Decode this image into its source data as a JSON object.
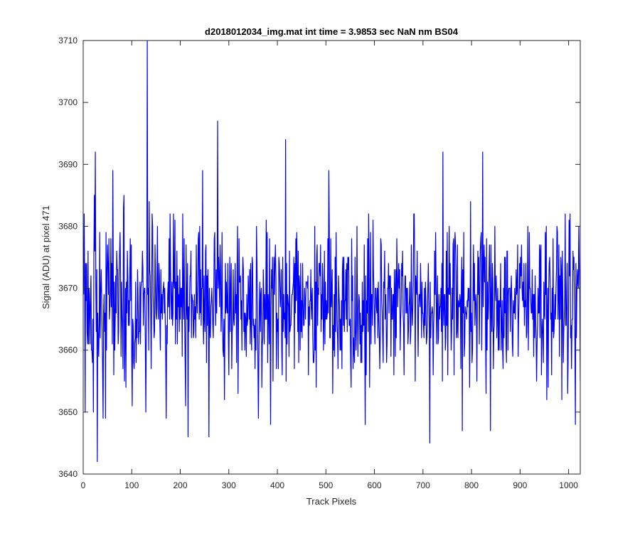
{
  "chart_data": {
    "type": "line",
    "title": "d2018012034_img.mat int time = 3.9853 sec  NaN nm BS04",
    "xlabel": "Track Pixels",
    "ylabel": "Signal (ADU) at pixel 471",
    "xlim": [
      0,
      1024
    ],
    "ylim": [
      3640,
      3710
    ],
    "xticks": [
      0,
      100,
      200,
      300,
      400,
      500,
      600,
      700,
      800,
      900,
      1000
    ],
    "yticks": [
      3640,
      3650,
      3660,
      3670,
      3680,
      3690,
      3700,
      3710
    ],
    "grid": false,
    "line_color": "#0000ff",
    "noise": {
      "points": 1024,
      "mean": 3668,
      "amplitude": 11,
      "seed": 2018
    },
    "notable_points": [
      {
        "x": 1,
        "y": 3682
      },
      {
        "x": 3,
        "y": 3650
      },
      {
        "x": 17,
        "y": 3660
      },
      {
        "x": 20,
        "y": 3650
      },
      {
        "x": 22,
        "y": 3685
      },
      {
        "x": 24,
        "y": 3692
      },
      {
        "x": 28,
        "y": 3642
      },
      {
        "x": 40,
        "y": 3649
      },
      {
        "x": 45,
        "y": 3649
      },
      {
        "x": 60,
        "y": 3689
      },
      {
        "x": 100,
        "y": 3651
      },
      {
        "x": 128,
        "y": 3650
      },
      {
        "x": 131,
        "y": 3710
      },
      {
        "x": 135,
        "y": 3684
      },
      {
        "x": 170,
        "y": 3649
      },
      {
        "x": 210,
        "y": 3651
      },
      {
        "x": 215,
        "y": 3646
      },
      {
        "x": 245,
        "y": 3689
      },
      {
        "x": 258,
        "y": 3646
      },
      {
        "x": 276,
        "y": 3697
      },
      {
        "x": 290,
        "y": 3652
      },
      {
        "x": 360,
        "y": 3649
      },
      {
        "x": 385,
        "y": 3648
      },
      {
        "x": 416,
        "y": 3694
      },
      {
        "x": 505,
        "y": 3689
      },
      {
        "x": 580,
        "y": 3648
      },
      {
        "x": 713,
        "y": 3645
      },
      {
        "x": 740,
        "y": 3692
      },
      {
        "x": 780,
        "y": 3647
      },
      {
        "x": 822,
        "y": 3692
      },
      {
        "x": 838,
        "y": 3647
      },
      {
        "x": 1013,
        "y": 3648
      },
      {
        "x": 1020,
        "y": 3680
      },
      {
        "x": 1023,
        "y": 3655
      }
    ]
  }
}
